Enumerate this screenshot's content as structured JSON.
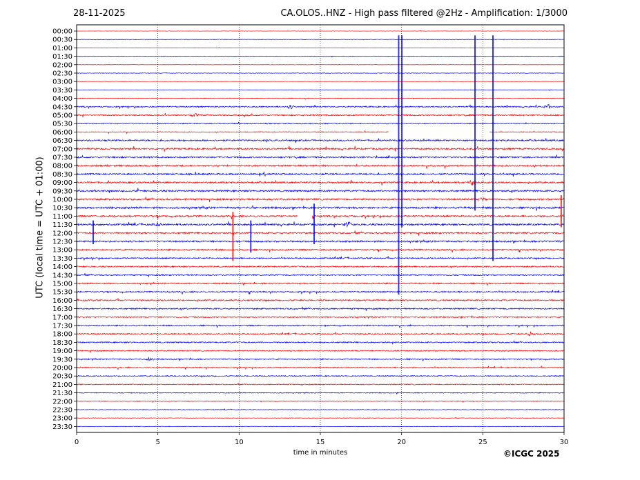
{
  "header": {
    "date": "28-11-2025",
    "title": "CA.OLOS..HNZ - High pass filtered @2Hz - Amplification: 1/3000"
  },
  "footer": {
    "copyright": "©ICGC 2025"
  },
  "colors": {
    "trace_a": "#ff0000",
    "trace_b": "#0000ff",
    "axis": "#000000"
  },
  "chart_data": {
    "type": "line",
    "title": "CA.OLOS..HNZ - High pass filtered @2Hz - Amplification: 1/3000",
    "xlabel": "time in minutes",
    "ylabel": "UTC (local time = UTC + 01:00)",
    "xlim": [
      0,
      30
    ],
    "x_ticks": [
      "0",
      "5",
      "10",
      "15",
      "20",
      "25",
      "30"
    ],
    "grid": "vertical dotted lines at 5, 10, 15, 20, 25 minutes",
    "rows": [
      "00:00",
      "00:30",
      "01:00",
      "01:30",
      "02:00",
      "02:30",
      "03:00",
      "03:30",
      "04:00",
      "04:30",
      "05:00",
      "05:30",
      "06:00",
      "06:30",
      "07:00",
      "07:30",
      "08:00",
      "08:30",
      "09:00",
      "09:30",
      "10:00",
      "10:30",
      "11:00",
      "11:30",
      "12:00",
      "12:30",
      "13:00",
      "13:30",
      "14:00",
      "14:30",
      "15:00",
      "15:30",
      "16:00",
      "16:30",
      "17:00",
      "17:30",
      "18:00",
      "18:30",
      "19:00",
      "19:30",
      "20:00",
      "20:30",
      "21:00",
      "21:30",
      "22:00",
      "22:30",
      "23:00",
      "23:30"
    ],
    "row_color_order": [
      "red",
      "blue"
    ],
    "noise_level_by_row": [
      0.3,
      0.4,
      0.3,
      0.5,
      0.3,
      0.5,
      0.3,
      0.4,
      0.6,
      1.2,
      1.3,
      1.0,
      0.8,
      1.5,
      1.6,
      1.5,
      1.6,
      1.6,
      1.6,
      1.7,
      1.7,
      1.8,
      1.6,
      1.7,
      1.6,
      1.6,
      1.4,
      1.3,
      1.3,
      1.2,
      1.3,
      1.3,
      1.3,
      1.3,
      1.2,
      1.2,
      1.2,
      1.2,
      1.1,
      1.1,
      1.1,
      1.0,
      0.9,
      0.8,
      0.7,
      0.6,
      0.5,
      0.5
    ],
    "gaps": [
      {
        "row": "06:00",
        "start_min": 19.2,
        "end_min": 25.4
      },
      {
        "row": "11:00",
        "start_min": 13.6,
        "end_min": 14.5
      }
    ],
    "spikes": [
      {
        "row": "00:30",
        "minute": 19.8,
        "span_rows": 30
      },
      {
        "row": "00:30",
        "minute": 20.0,
        "span_rows": 22
      },
      {
        "row": "00:30",
        "minute": 24.5,
        "span_rows": 20
      },
      {
        "row": "00:30",
        "minute": 25.6,
        "span_rows": 26
      },
      {
        "row": "10:00",
        "minute": 29.8,
        "span_rows": 3
      },
      {
        "row": "10:30",
        "minute": 14.6,
        "span_rows": 4
      },
      {
        "row": "11:00",
        "minute": 9.6,
        "span_rows": 5
      },
      {
        "row": "11:30",
        "minute": 10.7,
        "span_rows": 3
      },
      {
        "row": "11:30",
        "minute": 1.0,
        "span_rows": 2
      }
    ],
    "bursts": [
      {
        "row": "04:30",
        "minute": 13.2,
        "amp": 3
      },
      {
        "row": "04:30",
        "minute": 29.0,
        "amp": 3
      },
      {
        "row": "05:00",
        "minute": 7.3,
        "amp": 3
      },
      {
        "row": "09:00",
        "minute": 24.3,
        "amp": 4
      },
      {
        "row": "10:00",
        "minute": 25.0,
        "amp": 3
      },
      {
        "row": "10:30",
        "minute": 2.1,
        "amp": 4
      },
      {
        "row": "11:30",
        "minute": 16.7,
        "amp": 4
      },
      {
        "row": "11:30",
        "minute": 5.0,
        "amp": 3
      },
      {
        "row": "18:00",
        "minute": 27.9,
        "amp": 3
      },
      {
        "row": "19:30",
        "minute": 4.5,
        "amp": 3
      }
    ]
  }
}
